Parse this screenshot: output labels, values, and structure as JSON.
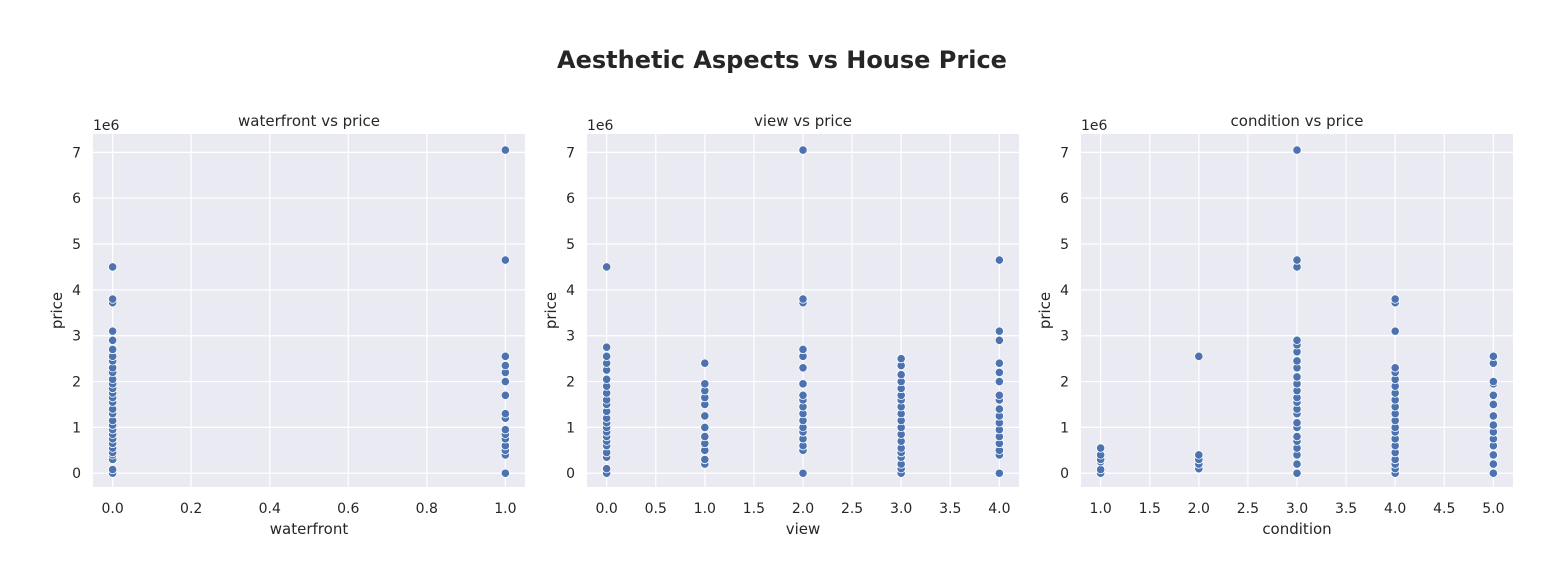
{
  "figure_title": "Aesthetic Aspects vs House Price",
  "chart_data": [
    {
      "type": "scatter",
      "title": "waterfront vs price",
      "xlabel": "waterfront",
      "ylabel": "price",
      "y_offset_label": "1e6",
      "xlim": [
        -0.05,
        1.05
      ],
      "ylim": [
        -0.3,
        7.4
      ],
      "xticks": [
        0.0,
        0.2,
        0.4,
        0.6,
        0.8,
        1.0
      ],
      "xtick_labels": [
        "0.0",
        "0.2",
        "0.4",
        "0.6",
        "0.8",
        "1.0"
      ],
      "yticks": [
        0,
        1,
        2,
        3,
        4,
        5,
        6,
        7
      ],
      "ytick_labels": [
        "0",
        "1",
        "2",
        "3",
        "4",
        "5",
        "6",
        "7"
      ],
      "grid": true,
      "color": "#4c72b0",
      "points": [
        [
          0,
          0.0
        ],
        [
          0,
          0.08
        ],
        [
          0,
          0.3
        ],
        [
          0,
          0.4
        ],
        [
          0,
          0.45
        ],
        [
          0,
          0.55
        ],
        [
          0,
          0.65
        ],
        [
          0,
          0.75
        ],
        [
          0,
          0.85
        ],
        [
          0,
          0.95
        ],
        [
          0,
          1.05
        ],
        [
          0,
          1.15
        ],
        [
          0,
          1.3
        ],
        [
          0,
          1.4
        ],
        [
          0,
          1.55
        ],
        [
          0,
          1.65
        ],
        [
          0,
          1.75
        ],
        [
          0,
          1.85
        ],
        [
          0,
          1.95
        ],
        [
          0,
          2.05
        ],
        [
          0,
          2.2
        ],
        [
          0,
          2.3
        ],
        [
          0,
          2.45
        ],
        [
          0,
          2.55
        ],
        [
          0,
          2.7
        ],
        [
          0,
          2.9
        ],
        [
          0,
          3.1
        ],
        [
          0,
          3.72
        ],
        [
          0,
          3.8
        ],
        [
          0,
          4.5
        ],
        [
          1,
          0.0
        ],
        [
          1,
          0.4
        ],
        [
          1,
          0.5
        ],
        [
          1,
          0.6
        ],
        [
          1,
          0.75
        ],
        [
          1,
          0.85
        ],
        [
          1,
          0.95
        ],
        [
          1,
          1.2
        ],
        [
          1,
          1.3
        ],
        [
          1,
          1.7
        ],
        [
          1,
          2.0
        ],
        [
          1,
          2.2
        ],
        [
          1,
          2.35
        ],
        [
          1,
          2.55
        ],
        [
          1,
          4.65
        ],
        [
          1,
          7.05
        ]
      ]
    },
    {
      "type": "scatter",
      "title": "view vs price",
      "xlabel": "view",
      "ylabel": "price",
      "y_offset_label": "1e6",
      "xlim": [
        -0.2,
        4.2
      ],
      "ylim": [
        -0.3,
        7.4
      ],
      "xticks": [
        0.0,
        0.5,
        1.0,
        1.5,
        2.0,
        2.5,
        3.0,
        3.5,
        4.0
      ],
      "xtick_labels": [
        "0.0",
        "0.5",
        "1.0",
        "1.5",
        "2.0",
        "2.5",
        "3.0",
        "3.5",
        "4.0"
      ],
      "yticks": [
        0,
        1,
        2,
        3,
        4,
        5,
        6,
        7
      ],
      "ytick_labels": [
        "0",
        "1",
        "2",
        "3",
        "4",
        "5",
        "6",
        "7"
      ],
      "grid": true,
      "color": "#4c72b0",
      "points": [
        [
          0,
          0.0
        ],
        [
          0,
          0.1
        ],
        [
          0,
          0.35
        ],
        [
          0,
          0.45
        ],
        [
          0,
          0.6
        ],
        [
          0,
          0.7
        ],
        [
          0,
          0.8
        ],
        [
          0,
          0.9
        ],
        [
          0,
          1.0
        ],
        [
          0,
          1.1
        ],
        [
          0,
          1.2
        ],
        [
          0,
          1.35
        ],
        [
          0,
          1.5
        ],
        [
          0,
          1.6
        ],
        [
          0,
          1.75
        ],
        [
          0,
          1.9
        ],
        [
          0,
          2.05
        ],
        [
          0,
          2.25
        ],
        [
          0,
          2.4
        ],
        [
          0,
          2.55
        ],
        [
          0,
          2.75
        ],
        [
          0,
          4.5
        ],
        [
          1,
          0.2
        ],
        [
          1,
          0.3
        ],
        [
          1,
          0.5
        ],
        [
          1,
          0.65
        ],
        [
          1,
          0.8
        ],
        [
          1,
          1.0
        ],
        [
          1,
          1.25
        ],
        [
          1,
          1.5
        ],
        [
          1,
          1.65
        ],
        [
          1,
          1.8
        ],
        [
          1,
          1.95
        ],
        [
          1,
          2.4
        ],
        [
          2,
          0.0
        ],
        [
          2,
          0.5
        ],
        [
          2,
          0.6
        ],
        [
          2,
          0.75
        ],
        [
          2,
          0.9
        ],
        [
          2,
          1.0
        ],
        [
          2,
          1.15
        ],
        [
          2,
          1.3
        ],
        [
          2,
          1.45
        ],
        [
          2,
          1.6
        ],
        [
          2,
          1.7
        ],
        [
          2,
          1.95
        ],
        [
          2,
          2.3
        ],
        [
          2,
          2.55
        ],
        [
          2,
          2.7
        ],
        [
          2,
          3.72
        ],
        [
          2,
          3.8
        ],
        [
          2,
          7.05
        ],
        [
          3,
          0.0
        ],
        [
          3,
          0.1
        ],
        [
          3,
          0.2
        ],
        [
          3,
          0.35
        ],
        [
          3,
          0.45
        ],
        [
          3,
          0.55
        ],
        [
          3,
          0.7
        ],
        [
          3,
          0.85
        ],
        [
          3,
          1.0
        ],
        [
          3,
          1.15
        ],
        [
          3,
          1.3
        ],
        [
          3,
          1.45
        ],
        [
          3,
          1.6
        ],
        [
          3,
          1.7
        ],
        [
          3,
          1.85
        ],
        [
          3,
          2.0
        ],
        [
          3,
          2.15
        ],
        [
          3,
          2.35
        ],
        [
          3,
          2.5
        ],
        [
          4,
          0.0
        ],
        [
          4,
          0.4
        ],
        [
          4,
          0.5
        ],
        [
          4,
          0.65
        ],
        [
          4,
          0.8
        ],
        [
          4,
          0.95
        ],
        [
          4,
          1.1
        ],
        [
          4,
          1.25
        ],
        [
          4,
          1.4
        ],
        [
          4,
          1.6
        ],
        [
          4,
          1.7
        ],
        [
          4,
          2.0
        ],
        [
          4,
          2.2
        ],
        [
          4,
          2.4
        ],
        [
          4,
          2.9
        ],
        [
          4,
          3.1
        ],
        [
          4,
          4.65
        ]
      ]
    },
    {
      "type": "scatter",
      "title": "condition vs price",
      "xlabel": "condition",
      "ylabel": "price",
      "y_offset_label": "1e6",
      "xlim": [
        0.8,
        5.2
      ],
      "ylim": [
        -0.3,
        7.4
      ],
      "xticks": [
        1.0,
        1.5,
        2.0,
        2.5,
        3.0,
        3.5,
        4.0,
        4.5,
        5.0
      ],
      "xtick_labels": [
        "1.0",
        "1.5",
        "2.0",
        "2.5",
        "3.0",
        "3.5",
        "4.0",
        "4.5",
        "5.0"
      ],
      "yticks": [
        0,
        1,
        2,
        3,
        4,
        5,
        6,
        7
      ],
      "ytick_labels": [
        "0",
        "1",
        "2",
        "3",
        "4",
        "5",
        "6",
        "7"
      ],
      "grid": true,
      "color": "#4c72b0",
      "points": [
        [
          1,
          0.0
        ],
        [
          1,
          0.08
        ],
        [
          1,
          0.25
        ],
        [
          1,
          0.3
        ],
        [
          1,
          0.4
        ],
        [
          1,
          0.55
        ],
        [
          2,
          0.1
        ],
        [
          2,
          0.2
        ],
        [
          2,
          0.3
        ],
        [
          2,
          0.4
        ],
        [
          2,
          2.55
        ],
        [
          3,
          0.0
        ],
        [
          3,
          0.2
        ],
        [
          3,
          0.4
        ],
        [
          3,
          0.55
        ],
        [
          3,
          0.7
        ],
        [
          3,
          0.8
        ],
        [
          3,
          1.0
        ],
        [
          3,
          1.1
        ],
        [
          3,
          1.3
        ],
        [
          3,
          1.4
        ],
        [
          3,
          1.55
        ],
        [
          3,
          1.65
        ],
        [
          3,
          1.8
        ],
        [
          3,
          1.95
        ],
        [
          3,
          2.1
        ],
        [
          3,
          2.3
        ],
        [
          3,
          2.45
        ],
        [
          3,
          2.65
        ],
        [
          3,
          2.8
        ],
        [
          3,
          2.9
        ],
        [
          3,
          4.5
        ],
        [
          3,
          4.65
        ],
        [
          3,
          7.05
        ],
        [
          4,
          0.0
        ],
        [
          4,
          0.1
        ],
        [
          4,
          0.2
        ],
        [
          4,
          0.3
        ],
        [
          4,
          0.45
        ],
        [
          4,
          0.6
        ],
        [
          4,
          0.75
        ],
        [
          4,
          0.9
        ],
        [
          4,
          1.0
        ],
        [
          4,
          1.15
        ],
        [
          4,
          1.3
        ],
        [
          4,
          1.45
        ],
        [
          4,
          1.6
        ],
        [
          4,
          1.75
        ],
        [
          4,
          1.9
        ],
        [
          4,
          2.05
        ],
        [
          4,
          2.2
        ],
        [
          4,
          2.3
        ],
        [
          4,
          3.1
        ],
        [
          4,
          3.72
        ],
        [
          4,
          3.8
        ],
        [
          5,
          0.0
        ],
        [
          5,
          0.2
        ],
        [
          5,
          0.4
        ],
        [
          5,
          0.6
        ],
        [
          5,
          0.75
        ],
        [
          5,
          0.9
        ],
        [
          5,
          1.05
        ],
        [
          5,
          1.25
        ],
        [
          5,
          1.5
        ],
        [
          5,
          1.7
        ],
        [
          5,
          1.95
        ],
        [
          5,
          2.0
        ],
        [
          5,
          2.4
        ],
        [
          5,
          2.55
        ]
      ]
    }
  ]
}
